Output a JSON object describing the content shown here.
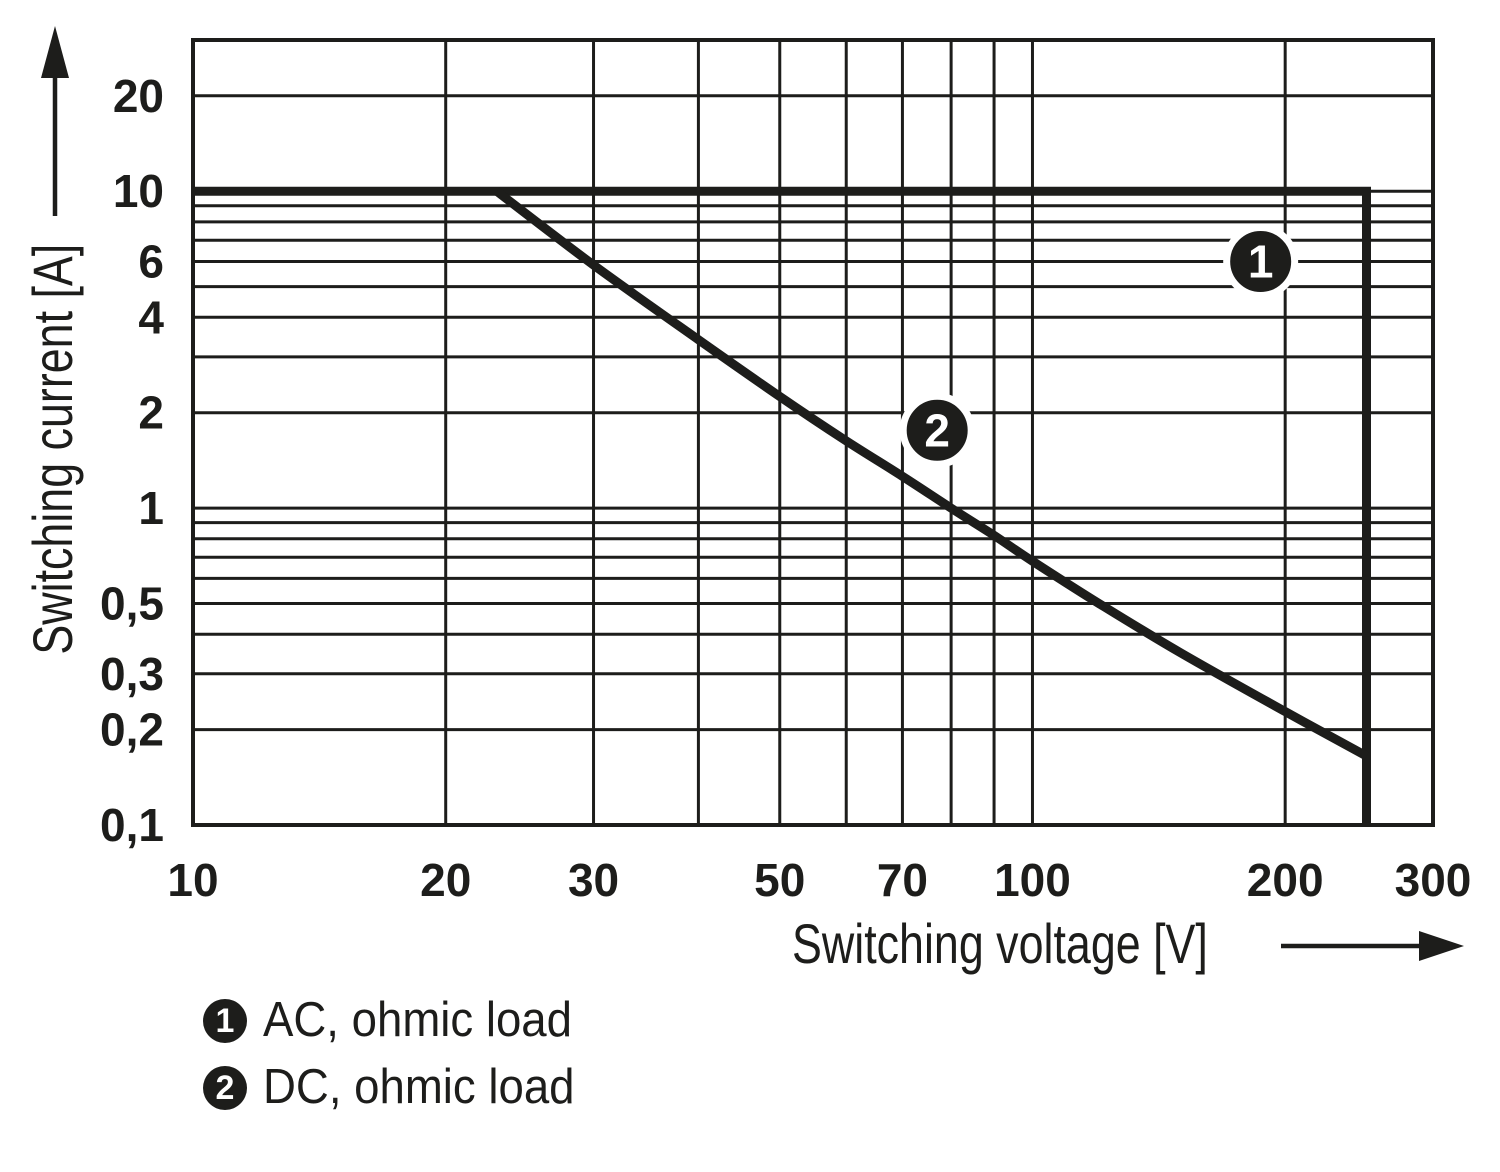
{
  "figure": {
    "background": "#ffffff",
    "ink": "#1d1d1b"
  },
  "chart_data": {
    "type": "line",
    "scale": "log-log",
    "grid": {
      "x_lines": [
        10,
        20,
        30,
        40,
        50,
        60,
        70,
        80,
        90,
        100,
        200,
        300
      ],
      "y_lines": [
        0.1,
        0.2,
        0.3,
        0.4,
        0.5,
        0.6,
        0.7,
        0.8,
        0.9,
        1,
        2,
        3,
        4,
        5,
        6,
        7,
        8,
        9,
        10,
        20,
        30
      ]
    },
    "x_axis": {
      "title": "Switching voltage [V]",
      "scale": "log",
      "range": [
        10,
        300
      ],
      "ticks": [
        {
          "value": 10,
          "label": "10"
        },
        {
          "value": 20,
          "label": "20"
        },
        {
          "value": 30,
          "label": "30"
        },
        {
          "value": 50,
          "label": "50"
        },
        {
          "value": 70,
          "label": "70"
        },
        {
          "value": 100,
          "label": "100"
        },
        {
          "value": 200,
          "label": "200"
        },
        {
          "value": 300,
          "label": "300"
        }
      ]
    },
    "y_axis": {
      "title": "Switching current [A]",
      "scale": "log",
      "range": [
        0.1,
        30
      ],
      "ticks": [
        {
          "value": 20,
          "label": "20"
        },
        {
          "value": 10,
          "label": "10"
        },
        {
          "value": 6,
          "label": "6"
        },
        {
          "value": 4,
          "label": "4"
        },
        {
          "value": 2,
          "label": "2"
        },
        {
          "value": 1,
          "label": "1"
        },
        {
          "value": 0.5,
          "label": "0,5"
        },
        {
          "value": 0.3,
          "label": "0,3"
        },
        {
          "value": 0.2,
          "label": "0,2"
        },
        {
          "value": 0.1,
          "label": "0,1"
        }
      ]
    },
    "series": [
      {
        "id": "1",
        "name": "AC, ohmic load",
        "smooth": false,
        "points": [
          [
            10,
            10
          ],
          [
            250,
            10
          ],
          [
            250,
            0.1
          ]
        ]
      },
      {
        "id": "2",
        "name": "DC, ohmic load",
        "smooth": true,
        "points": [
          [
            23,
            10
          ],
          [
            30,
            5.85
          ],
          [
            40,
            3.4
          ],
          [
            50,
            2.25
          ],
          [
            60,
            1.63
          ],
          [
            70,
            1.26
          ],
          [
            80,
            1.0
          ],
          [
            90,
            0.82
          ],
          [
            100,
            0.68
          ],
          [
            120,
            0.5
          ],
          [
            150,
            0.35
          ],
          [
            200,
            0.228
          ],
          [
            250,
            0.165
          ]
        ]
      }
    ],
    "markers": [
      {
        "label": "1",
        "v": 187,
        "i": 6.0
      },
      {
        "label": "2",
        "v": 77,
        "i": 1.76
      }
    ]
  },
  "legend": {
    "items": [
      {
        "marker": "1",
        "label": "AC, ohmic load"
      },
      {
        "marker": "2",
        "label": "DC, ohmic load"
      }
    ]
  }
}
